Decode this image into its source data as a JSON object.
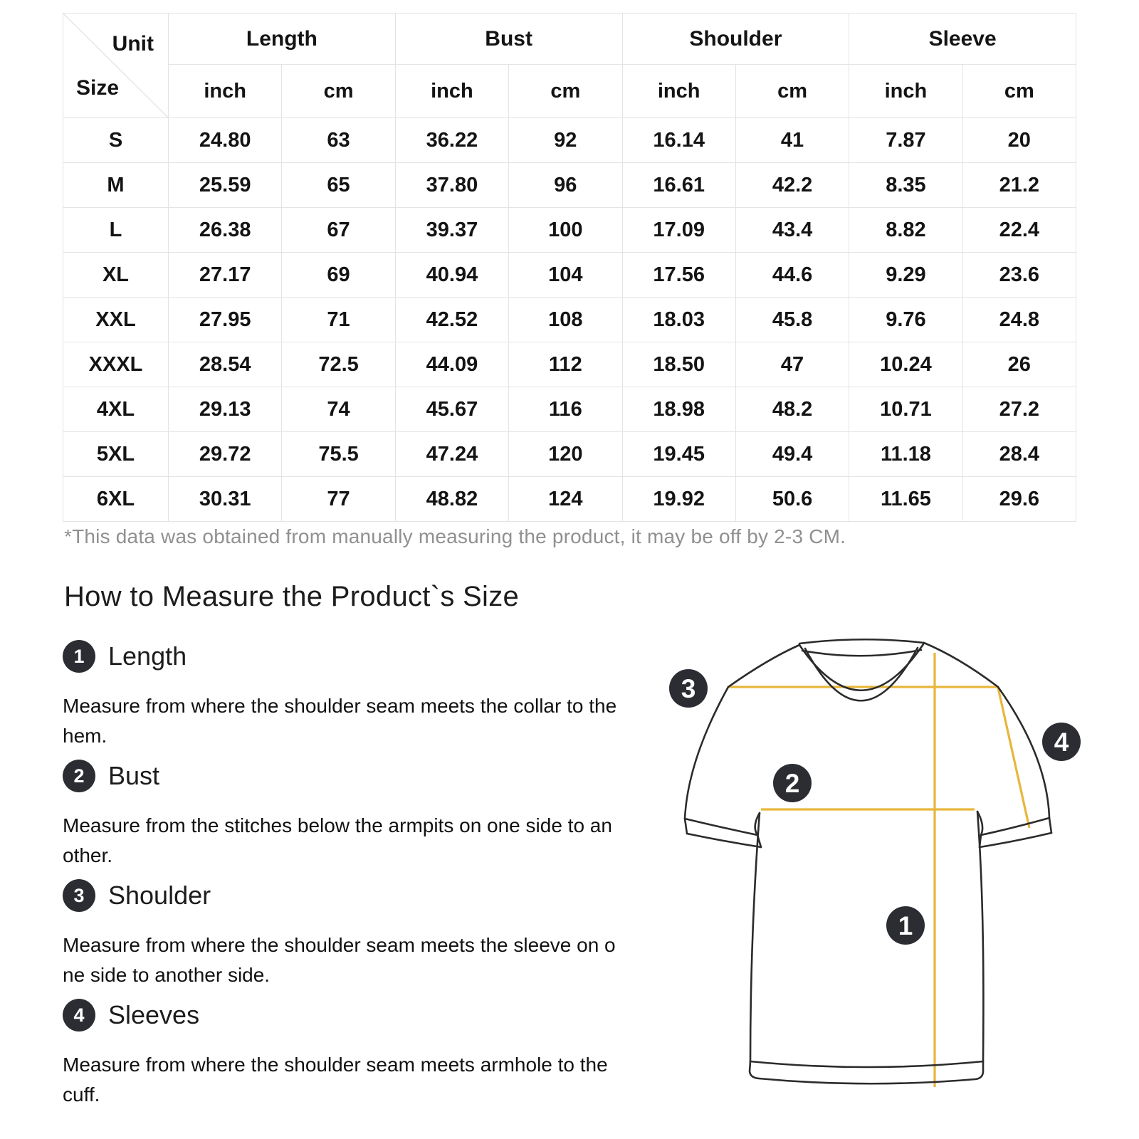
{
  "colors": {
    "measure_line": "#E8B63C",
    "badge": "#2B2D33",
    "badge_text": "#FFFFFF",
    "outline": "#2B2B2B",
    "grid_line": "#E4E4E4",
    "footnote_text": "#909090"
  },
  "table": {
    "corner": {
      "unit_label": "Unit",
      "size_label": "Size"
    },
    "groups": [
      {
        "label": "Length"
      },
      {
        "label": "Bust"
      },
      {
        "label": "Shoulder"
      },
      {
        "label": "Sleeve"
      }
    ],
    "unit_headers": [
      "inch",
      "cm",
      "inch",
      "cm",
      "inch",
      "cm",
      "inch",
      "cm"
    ],
    "rows": [
      {
        "size": "S",
        "values": [
          "24.80",
          "63",
          "36.22",
          "92",
          "16.14",
          "41",
          "7.87",
          "20"
        ]
      },
      {
        "size": "M",
        "values": [
          "25.59",
          "65",
          "37.80",
          "96",
          "16.61",
          "42.2",
          "8.35",
          "21.2"
        ]
      },
      {
        "size": "L",
        "values": [
          "26.38",
          "67",
          "39.37",
          "100",
          "17.09",
          "43.4",
          "8.82",
          "22.4"
        ]
      },
      {
        "size": "XL",
        "values": [
          "27.17",
          "69",
          "40.94",
          "104",
          "17.56",
          "44.6",
          "9.29",
          "23.6"
        ]
      },
      {
        "size": "XXL",
        "values": [
          "27.95",
          "71",
          "42.52",
          "108",
          "18.03",
          "45.8",
          "9.76",
          "24.8"
        ]
      },
      {
        "size": "XXXL",
        "values": [
          "28.54",
          "72.5",
          "44.09",
          "112",
          "18.50",
          "47",
          "10.24",
          "26"
        ]
      },
      {
        "size": "4XL",
        "values": [
          "29.13",
          "74",
          "45.67",
          "116",
          "18.98",
          "48.2",
          "10.71",
          "27.2"
        ]
      },
      {
        "size": "5XL",
        "values": [
          "29.72",
          "75.5",
          "47.24",
          "120",
          "19.45",
          "49.4",
          "11.18",
          "28.4"
        ]
      },
      {
        "size": "6XL",
        "values": [
          "30.31",
          "77",
          "48.82",
          "124",
          "19.92",
          "50.6",
          "11.65",
          "29.6"
        ]
      }
    ],
    "footnote": "*This data was obtained from manually measuring the product, it may be off by 2-3 CM."
  },
  "section": {
    "heading": "How to Measure the Product`s Size",
    "items": [
      {
        "num": "1",
        "label": "Length",
        "desc": "Measure from where the shoulder seam meets the collar to the\nhem."
      },
      {
        "num": "2",
        "label": "Bust",
        "desc": "Measure from the stitches below the armpits on one side to an\nother."
      },
      {
        "num": "3",
        "label": "Shoulder",
        "desc": "Measure from where the shoulder seam meets the sleeve on o\nne side to another side."
      },
      {
        "num": "4",
        "label": "Sleeves",
        "desc": "Measure from where the shoulder seam meets armhole to the\ncuff."
      }
    ]
  },
  "diagram": {
    "badge_numbers": [
      "1",
      "2",
      "3",
      "4"
    ]
  }
}
